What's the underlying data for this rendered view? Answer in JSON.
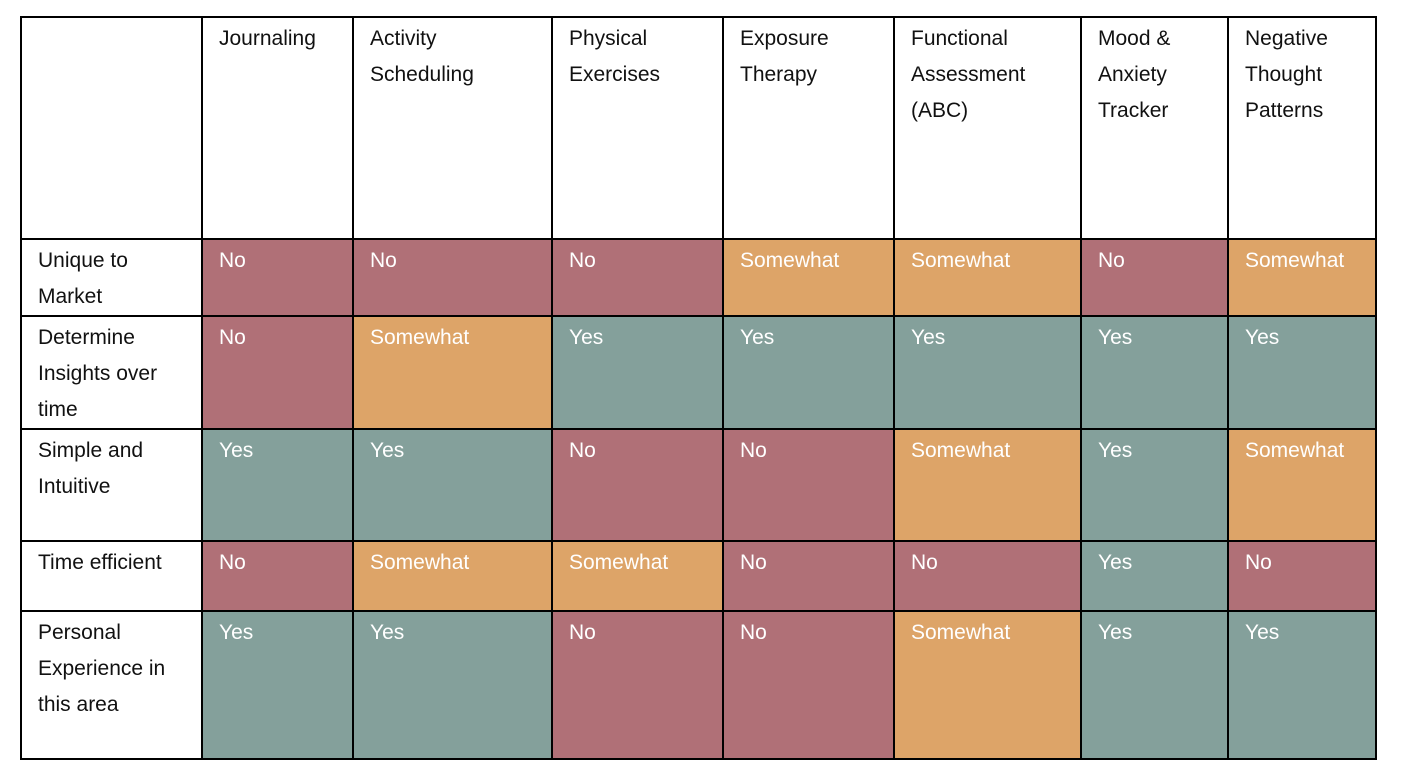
{
  "legend_colors": {
    "No": "#b07077",
    "Somewhat": "#dda468",
    "Yes": "#84a09b"
  },
  "table": {
    "corner": "",
    "columns": [
      "Journaling",
      "Activity\nScheduling",
      "Physical\nExercises",
      "Exposure\nTherapy",
      "Functional\nAssessment\n(ABC)",
      "Mood &\nAnxiety\nTracker",
      "Negative\nThought\nPatterns"
    ],
    "rows": [
      {
        "label": "Unique to\nMarket",
        "values": [
          "No",
          "No",
          "No",
          "Somewhat",
          "Somewhat",
          "No",
          "Somewhat"
        ]
      },
      {
        "label": "Determine\nInsights over\ntime",
        "values": [
          "No",
          "Somewhat",
          "Yes",
          "Yes",
          "Yes",
          "Yes",
          "Yes"
        ]
      },
      {
        "label": "Simple and\nIntuitive",
        "values": [
          "Yes",
          "Yes",
          "No",
          "No",
          "Somewhat",
          "Yes",
          "Somewhat"
        ]
      },
      {
        "label": "Time efficient",
        "values": [
          "No",
          "Somewhat",
          "Somewhat",
          "No",
          "No",
          "Yes",
          "No"
        ]
      },
      {
        "label": "Personal\nExperience in\nthis area",
        "values": [
          "Yes",
          "Yes",
          "No",
          "No",
          "Somewhat",
          "Yes",
          "Yes"
        ]
      }
    ]
  }
}
